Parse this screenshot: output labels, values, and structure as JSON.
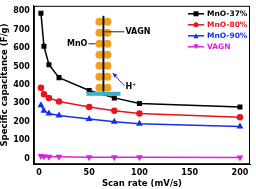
{
  "chart_data": {
    "type": "line",
    "x_label": "Scan rate (mV/s)",
    "y_label": "Specific capacitance (F/g)",
    "x": [
      2,
      5,
      10,
      20,
      50,
      75,
      100,
      200
    ],
    "series": [
      {
        "name": "MnO-37%",
        "color": "#000000",
        "marker": "square",
        "values": [
          790,
          610,
          510,
          440,
          370,
          330,
          300,
          280
        ]
      },
      {
        "name": "MnO-80%",
        "color": "#e8141e",
        "marker": "circle",
        "values": [
          385,
          350,
          330,
          310,
          280,
          260,
          245,
          225
        ]
      },
      {
        "name": "MnO-90%",
        "color": "#1a2ef0",
        "marker": "triangle",
        "values": [
          290,
          260,
          245,
          235,
          215,
          200,
          190,
          175
        ]
      },
      {
        "name": "VAGN",
        "color": "#e020e0",
        "marker": "triangle-down",
        "values": [
          15,
          12,
          10,
          10,
          8,
          8,
          8,
          7
        ]
      }
    ],
    "xlim": [
      -5,
      210
    ],
    "xticks": [
      0,
      50,
      100,
      150,
      200
    ],
    "ylim": [
      -30,
      830
    ],
    "yticks": [
      0,
      100,
      200,
      300,
      400,
      500,
      600,
      700,
      800
    ],
    "grid": false,
    "legend": "top-right",
    "annotations": [
      "MnO",
      "VAGN",
      "H⁺"
    ]
  }
}
